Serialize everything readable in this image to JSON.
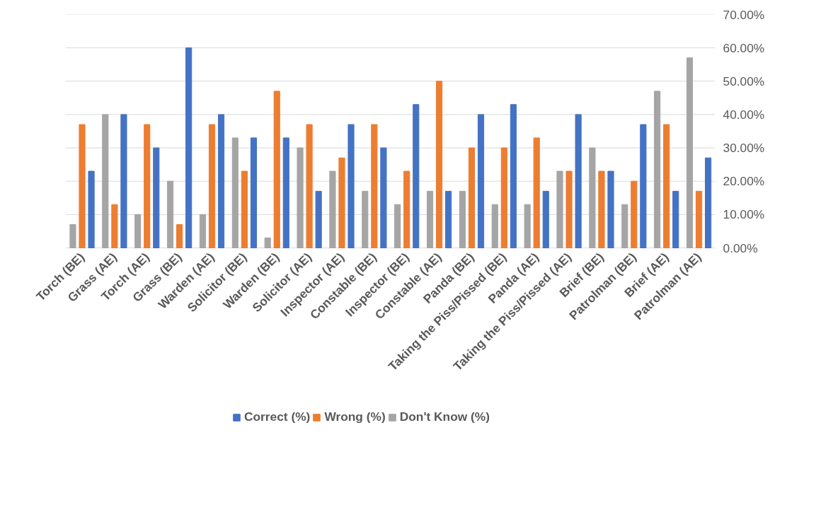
{
  "chart_data": {
    "type": "bar",
    "categories": [
      "Torch (BE)",
      "Grass (AE)",
      "Torch (AE)",
      "Grass (BE)",
      "Warden (AE)",
      "Solicitor (BE)",
      "Warden (BE)",
      "Solicitor (AE)",
      "Inspector (AE)",
      "Constable (BE)",
      "Inspector (BE)",
      "Constable (AE)",
      "Panda (BE)",
      "Taking the Piss/Pissed (BE)",
      "Panda (AE)",
      "Taking the Piss/Pissed (AE)",
      "Brief (BE)",
      "Patrolman (BE)",
      "Brief (AE)",
      "Patrolman (AE)"
    ],
    "series": [
      {
        "name": "Correct (%)",
        "color": "#4472c4",
        "values": [
          23,
          40,
          30,
          60,
          40,
          33,
          33,
          17,
          37,
          30,
          43,
          17,
          40,
          43,
          17,
          40,
          23,
          37,
          17,
          27
        ]
      },
      {
        "name": "Wrong (%)",
        "color": "#ed7d31",
        "values": [
          37,
          13,
          37,
          7,
          37,
          23,
          47,
          37,
          27,
          37,
          23,
          50,
          30,
          30,
          33,
          23,
          23,
          20,
          37,
          17
        ]
      },
      {
        "name": "Don't Know (%)",
        "color": "#a5a5a5",
        "values": [
          7,
          40,
          10,
          20,
          10,
          33,
          3,
          30,
          23,
          17,
          13,
          17,
          17,
          13,
          13,
          23,
          30,
          13,
          47,
          57
        ]
      }
    ],
    "ylim": [
      0,
      70
    ],
    "yticks": [
      {
        "value": 0,
        "label": "0.00%"
      },
      {
        "value": 10,
        "label": "10.00%"
      },
      {
        "value": 20,
        "label": "20.00%"
      },
      {
        "value": 30,
        "label": "30.00%"
      },
      {
        "value": 40,
        "label": "40.00%"
      },
      {
        "value": 50,
        "label": "50.00%"
      },
      {
        "value": 60,
        "label": "60.00%"
      },
      {
        "value": 70,
        "label": "70.00%"
      }
    ],
    "grid": "y",
    "legend": "bottom"
  }
}
